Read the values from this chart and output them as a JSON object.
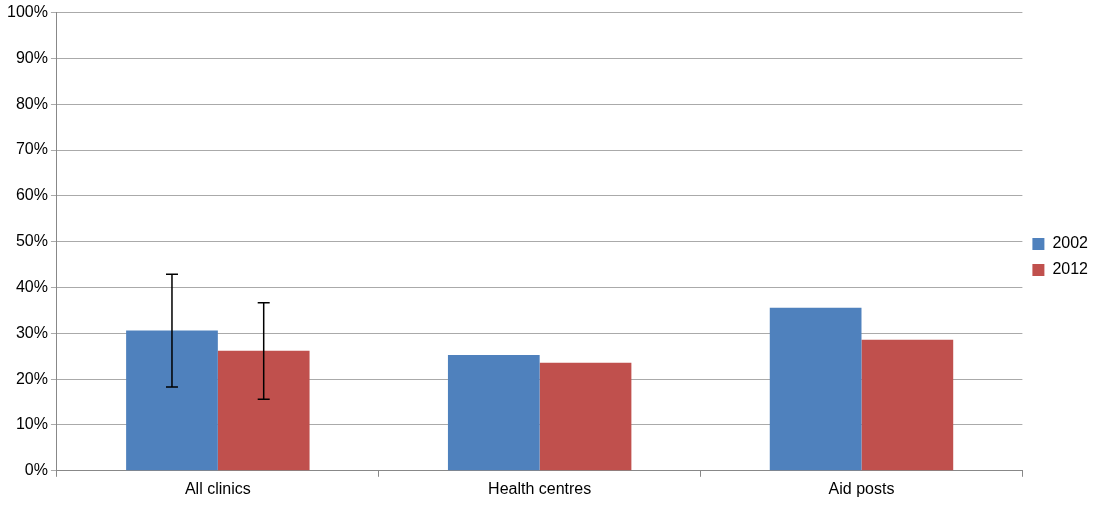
{
  "chart_data": {
    "type": "bar",
    "categories": [
      "All clinics",
      "Health centres",
      "Aid posts"
    ],
    "series": [
      {
        "name": "2002",
        "color": "#4f81bd",
        "values": [
          30.6,
          25.3,
          35.6
        ],
        "errors": [
          [
            18.3,
            42.9
          ],
          null,
          null
        ]
      },
      {
        "name": "2012",
        "color": "#c0504d",
        "values": [
          26.2,
          23.6,
          28.6
        ],
        "errors": [
          [
            15.6,
            36.7
          ],
          null,
          null
        ]
      }
    ],
    "ylim": [
      0,
      100
    ],
    "yticks": [
      {
        "value": 0,
        "label": "0%"
      },
      {
        "value": 10,
        "label": "10%"
      },
      {
        "value": 20,
        "label": "20%"
      },
      {
        "value": 30,
        "label": "30%"
      },
      {
        "value": 40,
        "label": "40%"
      },
      {
        "value": 50,
        "label": "50%"
      },
      {
        "value": 60,
        "label": "60%"
      },
      {
        "value": 70,
        "label": "70%"
      },
      {
        "value": 80,
        "label": "80%"
      },
      {
        "value": 90,
        "label": "90%"
      },
      {
        "value": 100,
        "label": "100%"
      }
    ],
    "grid": "y",
    "legend": "right"
  }
}
